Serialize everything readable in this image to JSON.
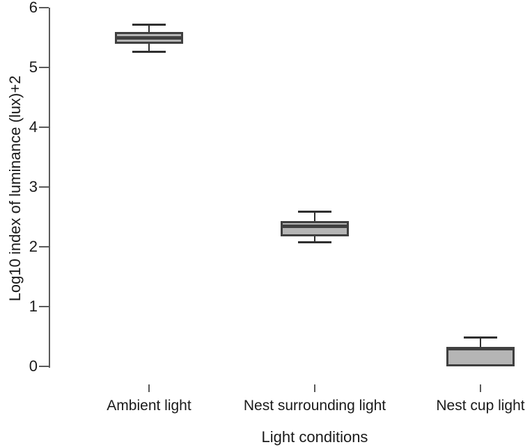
{
  "chart_data": {
    "type": "boxplot",
    "title": "",
    "xlabel": "Light conditions",
    "ylabel": "Log10 index of luminance (lux)+2",
    "ylim": [
      0,
      6
    ],
    "yticks": [
      0,
      1,
      2,
      3,
      4,
      5,
      6
    ],
    "grid": false,
    "legend": null,
    "categories": [
      "Ambient light",
      "Nest surrounding light",
      "Nest cup light"
    ],
    "series": [
      {
        "label": "Ambient light",
        "min": 5.27,
        "q1": 5.39,
        "median": 5.5,
        "q3": 5.59,
        "max": 5.71
      },
      {
        "label": "Nest surrounding light",
        "min": 2.08,
        "q1": 2.17,
        "median": 2.35,
        "q3": 2.43,
        "max": 2.58
      },
      {
        "label": "Nest cup light",
        "min": 0.0,
        "q1": 0.0,
        "median": 0.3,
        "q3": 0.3,
        "max": 0.48
      }
    ],
    "colors": {
      "box_fill": "#b5b5b5",
      "box_border": "#3f3f3f",
      "median": "#404040",
      "axis": "#5a5a5a",
      "whisker": "#2f2f2f",
      "text": "#1a1a1a",
      "background": "#ffffff"
    }
  }
}
